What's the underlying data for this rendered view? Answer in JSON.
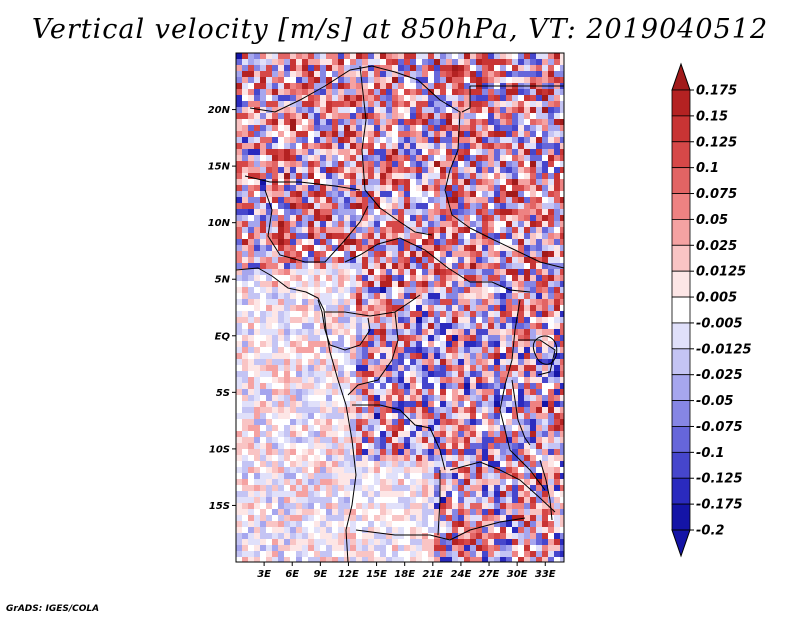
{
  "title": "Vertical velocity [m/s] at 850hPa, VT: 2019040512",
  "credit": "GrADS: IGES/COLA",
  "map": {
    "lon_range": [
      0,
      35
    ],
    "lat_range": [
      -20,
      25
    ],
    "lat_ticks": [
      {
        "value": 20,
        "label": "20N"
      },
      {
        "value": 15,
        "label": "15N"
      },
      {
        "value": 10,
        "label": "10N"
      },
      {
        "value": 5,
        "label": "5N"
      },
      {
        "value": 0,
        "label": "EQ"
      },
      {
        "value": -5,
        "label": "5S"
      },
      {
        "value": -10,
        "label": "10S"
      },
      {
        "value": -15,
        "label": "15S"
      }
    ],
    "lon_ticks": [
      {
        "value": 3,
        "label": "3E"
      },
      {
        "value": 6,
        "label": "6E"
      },
      {
        "value": 9,
        "label": "9E"
      },
      {
        "value": 12,
        "label": "12E"
      },
      {
        "value": 15,
        "label": "15E"
      },
      {
        "value": 18,
        "label": "18E"
      },
      {
        "value": 21,
        "label": "21E"
      },
      {
        "value": 24,
        "label": "24E"
      },
      {
        "value": 27,
        "label": "27E"
      },
      {
        "value": 30,
        "label": "30E"
      },
      {
        "value": 33,
        "label": "33E"
      }
    ]
  },
  "colorbar": {
    "levels": [
      {
        "label": "0.175",
        "color": "#a11a1a"
      },
      {
        "label": "0.15",
        "color": "#b42222"
      },
      {
        "label": "0.125",
        "color": "#c83434"
      },
      {
        "label": "0.1",
        "color": "#d64848"
      },
      {
        "label": "0.075",
        "color": "#e26464"
      },
      {
        "label": "0.05",
        "color": "#ee8282"
      },
      {
        "label": "0.025",
        "color": "#f5a2a2"
      },
      {
        "label": "0.0125",
        "color": "#f9c4c4"
      },
      {
        "label": "0.005",
        "color": "#fde6e6"
      },
      {
        "label": "-0.005",
        "color": "#ffffff"
      },
      {
        "label": "-0.0125",
        "color": "#e0e0fa"
      },
      {
        "label": "-0.025",
        "color": "#c4c4f4"
      },
      {
        "label": "-0.05",
        "color": "#a6a6ee"
      },
      {
        "label": "-0.075",
        "color": "#8686e4"
      },
      {
        "label": "-0.1",
        "color": "#6666da"
      },
      {
        "label": "-0.125",
        "color": "#4646cc"
      },
      {
        "label": "-0.175",
        "color": "#2a2abe"
      },
      {
        "label": "-0.2",
        "color": "#1414a6"
      }
    ],
    "max_color": "#a11a1a",
    "min_color": "#1414a6",
    "mid_color": "#ffffff"
  }
}
